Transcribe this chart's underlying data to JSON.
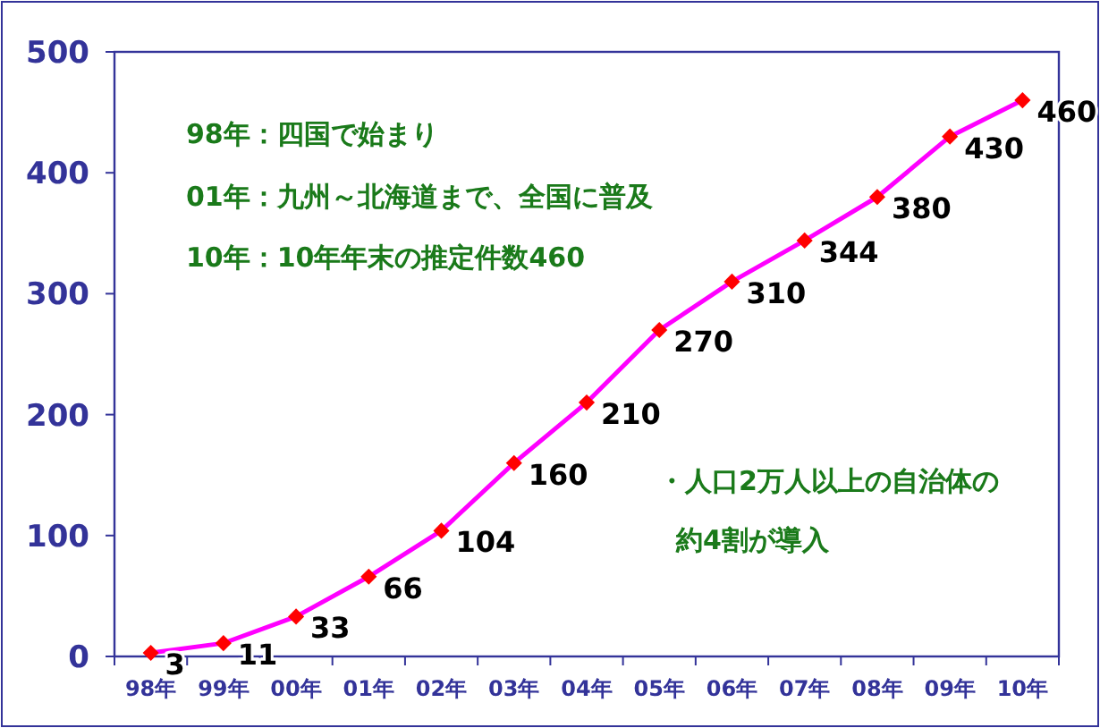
{
  "chart_data": {
    "type": "line",
    "categories": [
      "98年",
      "99年",
      "00年",
      "01年",
      "02年",
      "03年",
      "04年",
      "05年",
      "06年",
      "07年",
      "08年",
      "09年",
      "10年"
    ],
    "series": [
      {
        "color": "#ff00ff",
        "colors": [
          "#ff0000",
          "#ff0000",
          "#ff0000",
          "#ff0000",
          "#ff0000",
          "#ff0000",
          "#ff0000",
          "#ff0000",
          "#ff0000",
          "#ff0000",
          "#ff0000",
          "#ff0000",
          "#ff0000"
        ],
        "values": [
          3,
          11,
          33,
          66,
          104,
          160,
          210,
          270,
          310,
          344,
          380,
          430,
          460
        ]
      }
    ],
    "marker": "diamond",
    "data_labels": true,
    "ylim": [
      0,
      500
    ],
    "yticks": [
      0,
      100,
      200,
      300,
      400,
      500
    ],
    "grid": false,
    "annotations": [
      "98年：四国で始まり",
      "01年：九州～北海道まで、全国に普及",
      "10年：10年年末の推定件数460",
      "・人口2万人以上の自治体の",
      "約4割が導入"
    ]
  }
}
